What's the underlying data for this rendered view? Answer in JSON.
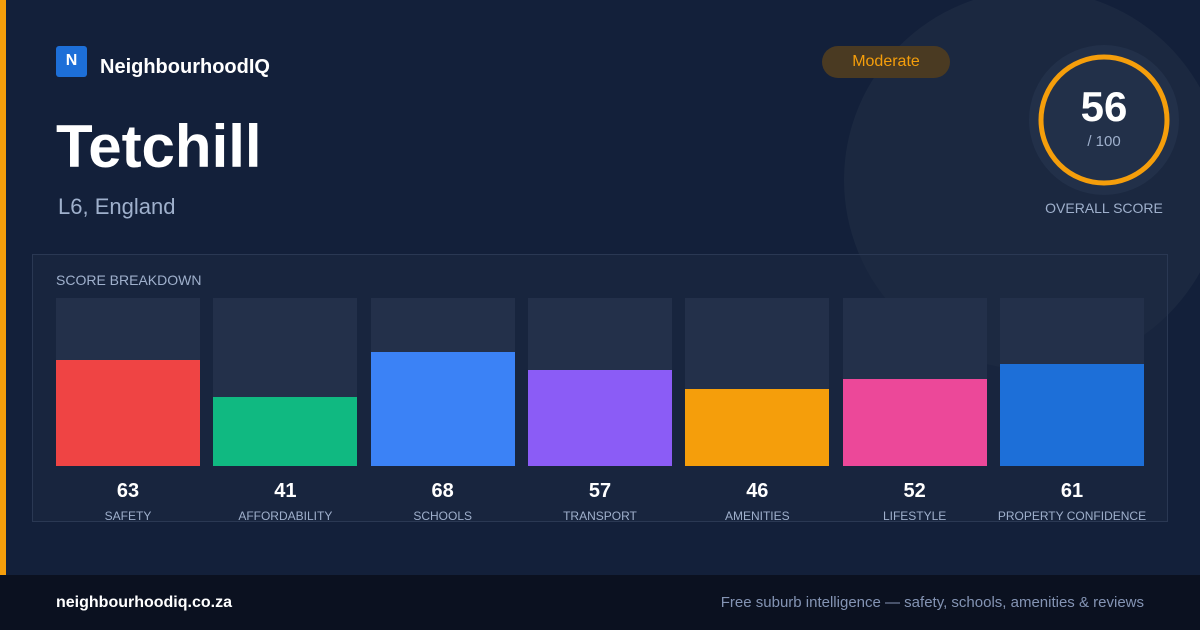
{
  "brand": {
    "logo": "N",
    "name": "NeighbourhoodIQ"
  },
  "title": "Tetchill",
  "location": "L6, England",
  "badge": "Moderate",
  "score": {
    "value": 56,
    "max_label": "/ 100",
    "label": "OVERALL SCORE"
  },
  "breakdown": {
    "type": "bar",
    "title": "SCORE BREAKDOWN",
    "categories": [
      "SAFETY",
      "AFFORDABILITY",
      "SCHOOLS",
      "TRANSPORT",
      "AMENITIES",
      "LIFESTYLE",
      "PROPERTY CONFIDENCE"
    ],
    "values": [
      63,
      41,
      68,
      57,
      46,
      52,
      61
    ],
    "colors": [
      "#ef4444",
      "#10b981",
      "#3b82f6",
      "#8b5cf6",
      "#f59e0b",
      "#ec4899",
      "#1d6fd8"
    ],
    "ylim": [
      0,
      100
    ]
  },
  "footer": {
    "url": "neighbourhoodiq.co.za",
    "tagline": "Free suburb intelligence — safety, schools, amenities & reviews"
  }
}
